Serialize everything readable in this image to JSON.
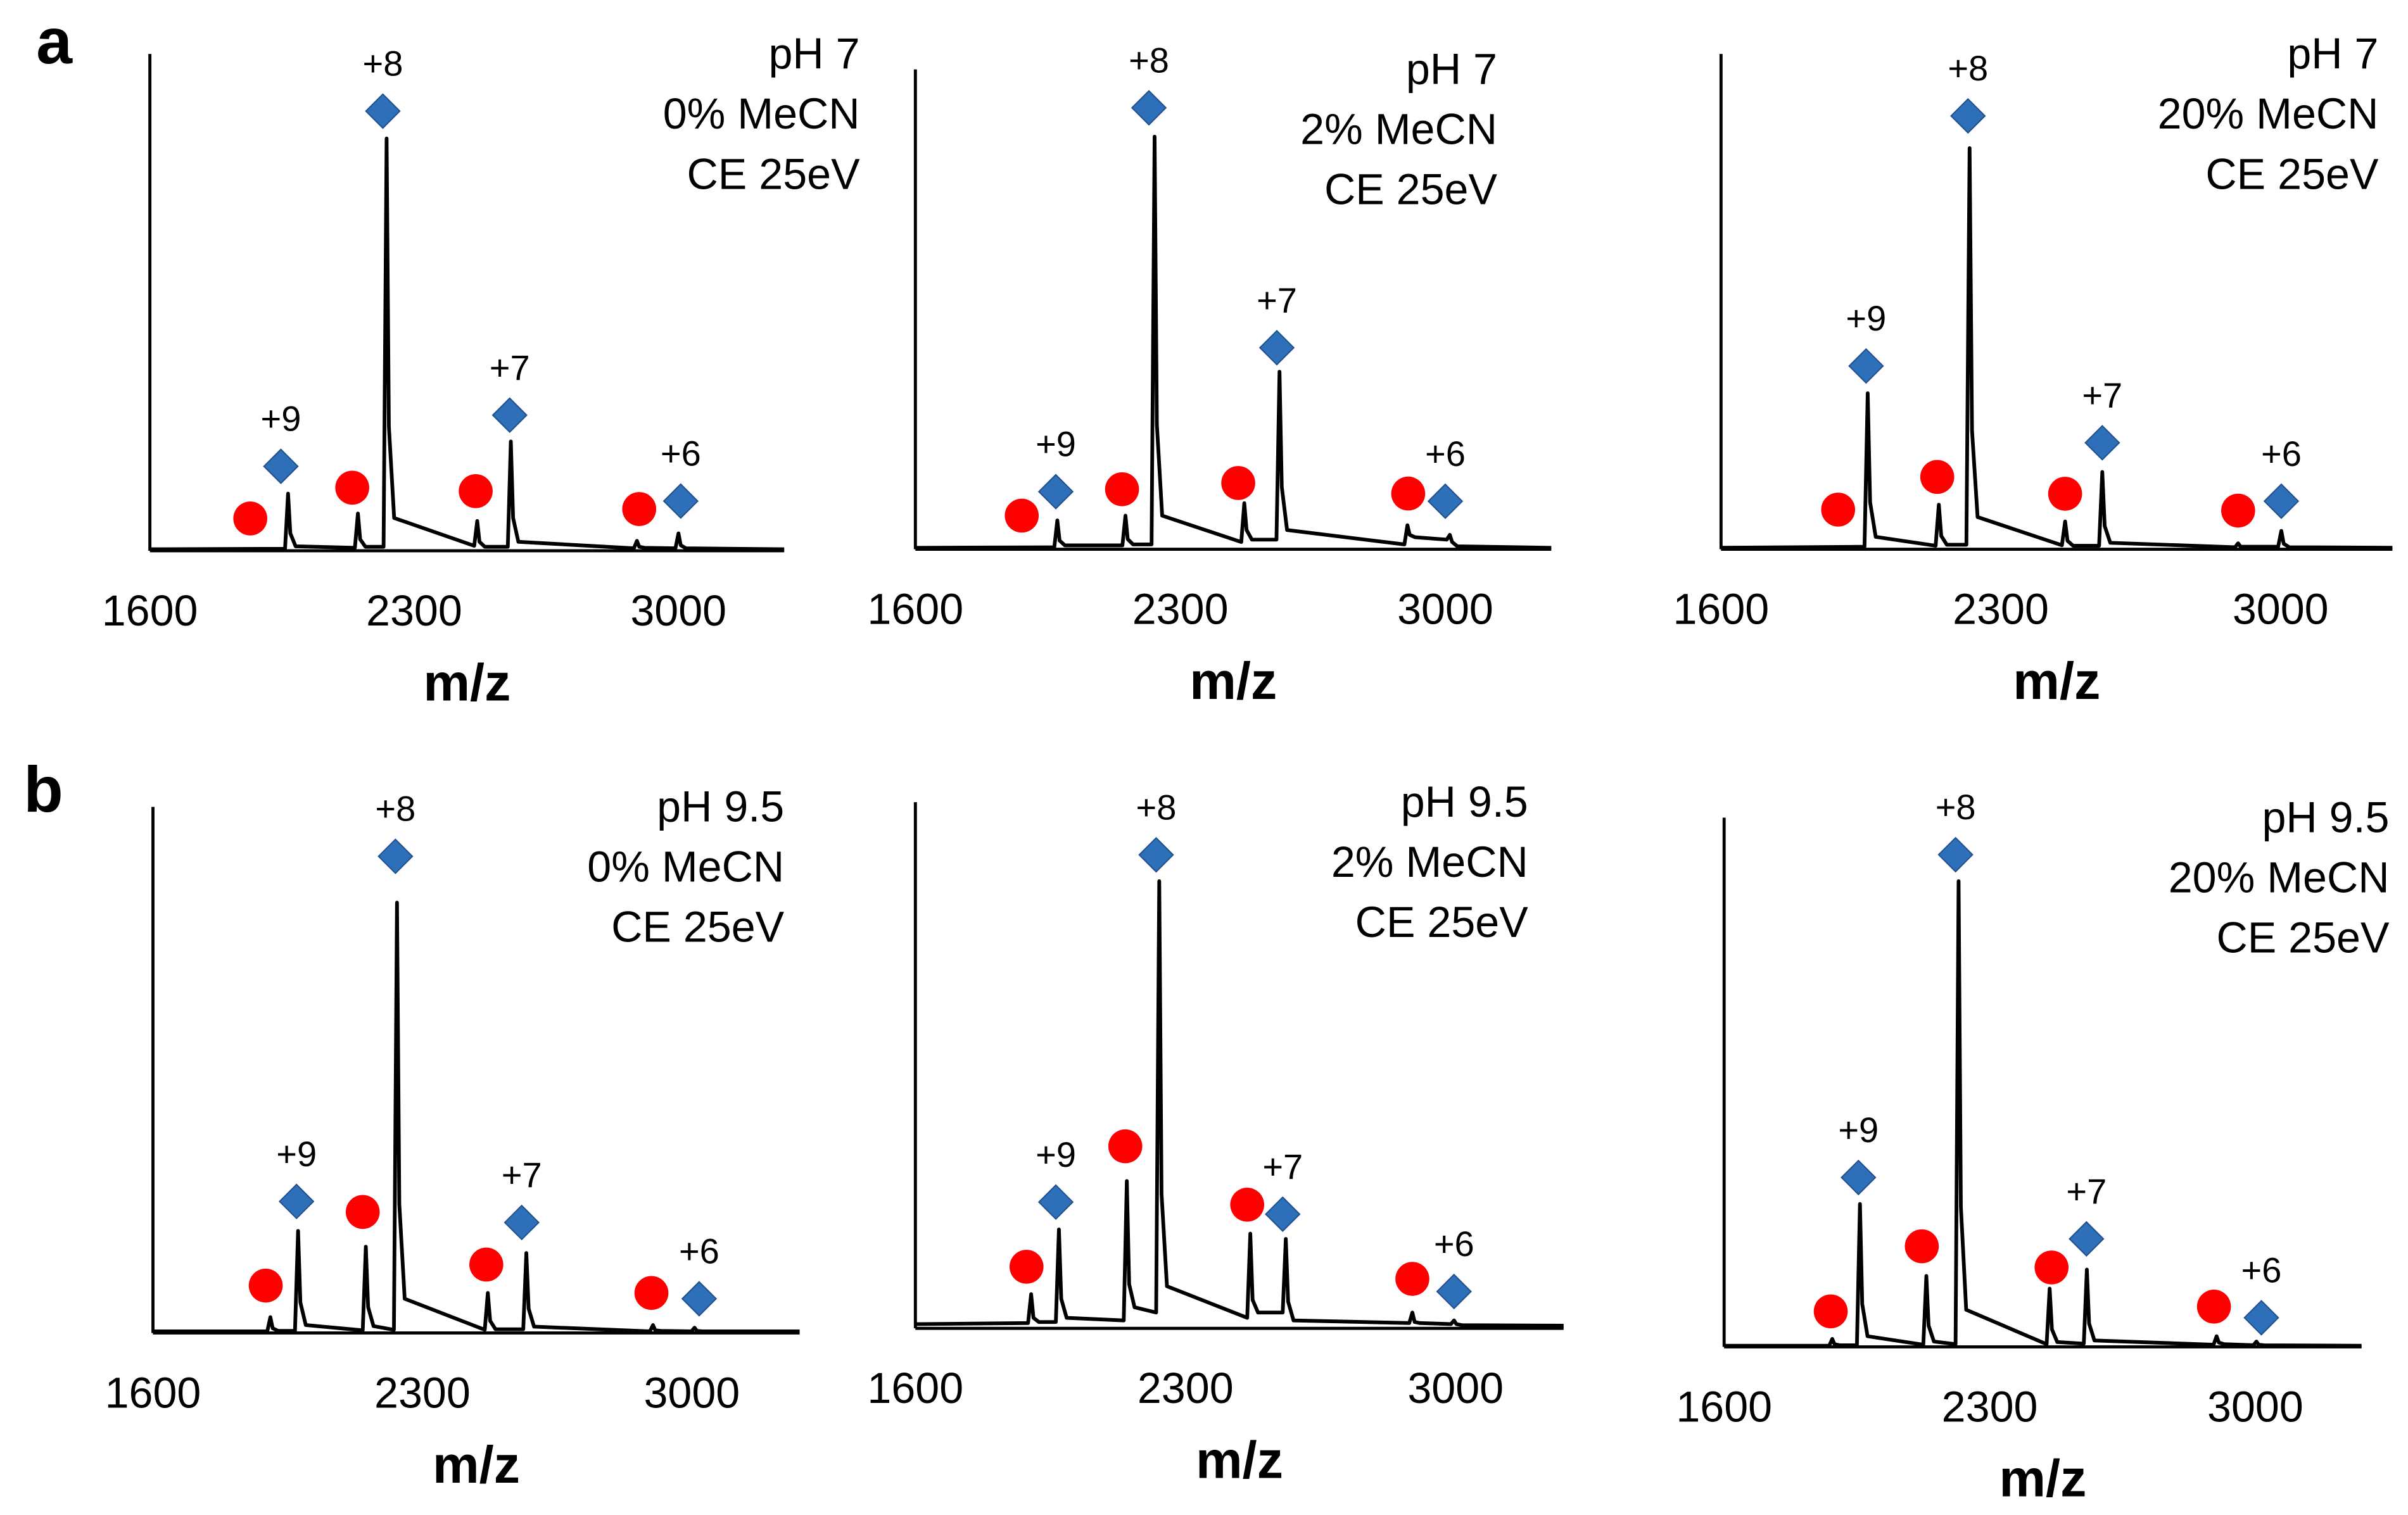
{
  "chart_data": [
    {
      "type": "line",
      "panel_label": "a",
      "annotation": [
        "pH 7",
        "0% MeCN",
        "CE 25eV"
      ],
      "xlabel": "m/z",
      "xlim": [
        1600,
        3280
      ],
      "xticks": [
        1600,
        2300,
        3000
      ],
      "ylim": [
        0,
        100
      ],
      "x": [
        1600,
        1958,
        1966,
        1972,
        1986,
        2143,
        2151,
        2157,
        2171,
        2219,
        2227,
        2233,
        2247,
        2459,
        2467,
        2473,
        2487,
        2548,
        2556,
        2562,
        2576,
        2882,
        2890,
        2896,
        2910,
        2992,
        3000,
        3006,
        3020,
        3280
      ],
      "series": [
        {
          "color": "#000000",
          "values": [
            0.3,
            0.4,
            11.5,
            3.5,
            0.9,
            0.6,
            7.5,
            2.3,
            0.8,
            0.8,
            83,
            25,
            6.6,
            1,
            6,
            1.8,
            0.8,
            0.8,
            22,
            6.6,
            1.8,
            0.5,
            2,
            0.8,
            0.6,
            0.5,
            3.5,
            1.1,
            0.5,
            0.3
          ]
        }
      ],
      "marker_colors": {
        "diamond": "#2e6fba",
        "circle": "#ff0000"
      },
      "markers": [
        {
          "shape": "circle",
          "x": 1866,
          "y": 6.5
        },
        {
          "shape": "diamond",
          "x": 1947,
          "y": 17,
          "label": "+9"
        },
        {
          "shape": "circle",
          "x": 2136,
          "y": 12.7
        },
        {
          "shape": "diamond",
          "x": 2217,
          "y": 88.5,
          "label": "+8"
        },
        {
          "shape": "circle",
          "x": 2463,
          "y": 12
        },
        {
          "shape": "diamond",
          "x": 2553,
          "y": 27.3,
          "label": "+7"
        },
        {
          "shape": "circle",
          "x": 2896,
          "y": 8.4
        },
        {
          "shape": "diamond",
          "x": 3006,
          "y": 10,
          "label": "+6"
        }
      ]
    },
    {
      "type": "line",
      "annotation": [
        "pH 7",
        "2% MeCN",
        "CE 25eV"
      ],
      "xlabel": "m/z",
      "xlim": [
        1600,
        3280
      ],
      "xticks": [
        1600,
        2300,
        3000
      ],
      "ylim": [
        0,
        100
      ],
      "x": [
        1600,
        1967,
        1975,
        1981,
        1995,
        2147,
        2155,
        2161,
        2175,
        2224,
        2232,
        2238,
        2252,
        2461,
        2469,
        2475,
        2489,
        2554,
        2562,
        2568,
        2582,
        2892,
        2900,
        2906,
        2920,
        3004,
        3012,
        3018,
        3032,
        3280
      ],
      "series": [
        {
          "color": "#000000",
          "values": [
            0.3,
            0.4,
            6,
            1.8,
            0.8,
            0.8,
            7,
            2.1,
            1,
            1,
            86,
            26,
            7,
            1.5,
            9.6,
            4,
            2,
            2,
            37,
            13,
            4,
            1,
            5,
            3,
            2.5,
            2,
            3,
            1.5,
            0.6,
            0.3
          ]
        }
      ],
      "marker_colors": {
        "diamond": "#2e6fba",
        "circle": "#ff0000"
      },
      "markers": [
        {
          "shape": "circle",
          "x": 1881,
          "y": 7
        },
        {
          "shape": "diamond",
          "x": 1971,
          "y": 12,
          "label": "+9"
        },
        {
          "shape": "circle",
          "x": 2146,
          "y": 12.5
        },
        {
          "shape": "diamond",
          "x": 2217,
          "y": 92,
          "label": "+8"
        },
        {
          "shape": "circle",
          "x": 2453,
          "y": 13.8
        },
        {
          "shape": "diamond",
          "x": 2555,
          "y": 42,
          "label": "+7"
        },
        {
          "shape": "circle",
          "x": 2902,
          "y": 11.6
        },
        {
          "shape": "diamond",
          "x": 3000,
          "y": 10,
          "label": "+6"
        }
      ]
    },
    {
      "type": "line",
      "annotation": [
        "pH 7",
        "20% MeCN",
        "CE 25eV"
      ],
      "xlabel": "m/z",
      "xlim": [
        1600,
        3280
      ],
      "xticks": [
        1600,
        2300,
        3000
      ],
      "ylim": [
        0,
        100
      ],
      "x": [
        1600,
        1959,
        1967,
        1973,
        1987,
        2137,
        2145,
        2151,
        2165,
        2214,
        2222,
        2228,
        2242,
        2453,
        2461,
        2467,
        2481,
        2546,
        2554,
        2560,
        2574,
        2886,
        2894,
        2900,
        2914,
        2994,
        3002,
        3008,
        3022,
        3280
      ],
      "series": [
        {
          "color": "#000000",
          "values": [
            0.3,
            0.5,
            31.5,
            9.5,
            2.5,
            0.7,
            9,
            2.7,
            0.9,
            0.9,
            81,
            24,
            6.5,
            0.8,
            5.6,
            1.7,
            0.7,
            0.7,
            15.6,
            4.7,
            1.3,
            0.4,
            1.2,
            0.5,
            0.5,
            0.5,
            3.7,
            1.1,
            0.4,
            0.3
          ]
        }
      ],
      "marker_colors": {
        "diamond": "#2e6fba",
        "circle": "#ff0000"
      },
      "markers": [
        {
          "shape": "circle",
          "x": 1893,
          "y": 8
        },
        {
          "shape": "diamond",
          "x": 1963,
          "y": 37,
          "label": "+9"
        },
        {
          "shape": "circle",
          "x": 2141,
          "y": 14.6
        },
        {
          "shape": "diamond",
          "x": 2218,
          "y": 87.5,
          "label": "+8"
        },
        {
          "shape": "circle",
          "x": 2461,
          "y": 11.2
        },
        {
          "shape": "diamond",
          "x": 2554,
          "y": 21.5,
          "label": "+7"
        },
        {
          "shape": "circle",
          "x": 2894,
          "y": 7.8
        },
        {
          "shape": "diamond",
          "x": 3002,
          "y": 9.7,
          "label": "+6"
        }
      ]
    },
    {
      "type": "line",
      "panel_label": "b",
      "annotation": [
        "pH 9.5",
        "0% MeCN",
        "CE 25eV"
      ],
      "xlabel": "m/z",
      "xlim": [
        1600,
        3280
      ],
      "xticks": [
        1600,
        2300,
        3000
      ],
      "ylim": [
        0,
        100
      ],
      "x": [
        1600,
        1897,
        1905,
        1911,
        1925,
        1969,
        1977,
        1983,
        1997,
        2145,
        2153,
        2159,
        2173,
        2226,
        2234,
        2240,
        2254,
        2462,
        2470,
        2476,
        2490,
        2562,
        2570,
        2576,
        2590,
        2891,
        2899,
        2905,
        2919,
        2999,
        3007,
        3013,
        3027,
        3280
      ],
      "series": [
        {
          "color": "#000000",
          "values": [
            0.3,
            0.3,
            3,
            0.9,
            0.4,
            0.4,
            19.4,
            5.8,
            1.5,
            0.5,
            16.4,
            4.9,
            1.3,
            0.6,
            81.8,
            24.5,
            6.5,
            0.6,
            7.6,
            2.3,
            0.7,
            0.7,
            15.2,
            4.6,
            1.2,
            0.3,
            1.5,
            0.5,
            0.4,
            0.3,
            1,
            0.4,
            0.3,
            0.3
          ]
        }
      ],
      "marker_colors": {
        "diamond": "#2e6fba",
        "circle": "#ff0000"
      },
      "markers": [
        {
          "shape": "circle",
          "x": 1893,
          "y": 9
        },
        {
          "shape": "diamond",
          "x": 1973,
          "y": 25,
          "label": "+9"
        },
        {
          "shape": "circle",
          "x": 2145,
          "y": 23
        },
        {
          "shape": "diamond",
          "x": 2230,
          "y": 90.6,
          "label": "+8"
        },
        {
          "shape": "circle",
          "x": 2466,
          "y": 13
        },
        {
          "shape": "diamond",
          "x": 2558,
          "y": 21,
          "label": "+7"
        },
        {
          "shape": "circle",
          "x": 2895,
          "y": 7.6
        },
        {
          "shape": "diamond",
          "x": 3019,
          "y": 6.5,
          "label": "+6"
        }
      ]
    },
    {
      "type": "line",
      "annotation": [
        "pH 9.5",
        "2% MeCN",
        "CE 25eV"
      ],
      "xlabel": "m/z",
      "xlim": [
        1600,
        3280
      ],
      "xticks": [
        1600,
        2300,
        3000
      ],
      "ylim": [
        0,
        100
      ],
      "x": [
        1600,
        1892,
        1900,
        1906,
        1920,
        1964,
        1972,
        1978,
        1992,
        2140,
        2148,
        2154,
        2168,
        2224,
        2232,
        2238,
        2252,
        2460,
        2468,
        2474,
        2488,
        2552,
        2560,
        2566,
        2580,
        2880,
        2888,
        2894,
        2908,
        2988,
        2996,
        3002,
        3016,
        3280
      ],
      "series": [
        {
          "color": "#000000",
          "values": [
            0.8,
            1,
            6.5,
            2,
            1.2,
            1.2,
            18.8,
            5.6,
            2,
            1.5,
            28,
            8.4,
            4,
            3,
            85,
            25.5,
            8,
            2,
            18,
            5.4,
            3,
            3,
            17,
            5.1,
            1.5,
            1,
            3,
            1.2,
            1,
            0.8,
            1.5,
            0.8,
            0.6,
            0.5
          ]
        }
      ],
      "marker_colors": {
        "diamond": "#2e6fba",
        "circle": "#ff0000"
      },
      "markers": [
        {
          "shape": "circle",
          "x": 1888,
          "y": 11.7
        },
        {
          "shape": "diamond",
          "x": 1964,
          "y": 24,
          "label": "+9"
        },
        {
          "shape": "circle",
          "x": 2144,
          "y": 34.6
        },
        {
          "shape": "diamond",
          "x": 2224,
          "y": 90,
          "label": "+8"
        },
        {
          "shape": "circle",
          "x": 2460,
          "y": 23.5
        },
        {
          "shape": "diamond",
          "x": 2552,
          "y": 21.7,
          "label": "+7"
        },
        {
          "shape": "circle",
          "x": 2888,
          "y": 9.4
        },
        {
          "shape": "diamond",
          "x": 2996,
          "y": 7,
          "label": "+6"
        }
      ]
    },
    {
      "type": "line",
      "annotation": [
        "pH 9.5",
        "20% MeCN",
        "CE 25eV"
      ],
      "xlabel": "m/z",
      "xlim": [
        1600,
        3280
      ],
      "xticks": [
        1600,
        2300,
        3000
      ],
      "ylim": [
        0,
        100
      ],
      "x": [
        1600,
        1877,
        1885,
        1891,
        1905,
        1950,
        1958,
        1964,
        1978,
        2125,
        2133,
        2139,
        2153,
        2210,
        2218,
        2224,
        2238,
        2450,
        2458,
        2464,
        2478,
        2548,
        2556,
        2562,
        2576,
        2890,
        2898,
        2904,
        2918,
        2995,
        3003,
        3009,
        3023,
        3280
      ],
      "series": [
        {
          "color": "#000000",
          "values": [
            0.2,
            0.2,
            1.5,
            0.5,
            0.3,
            0.3,
            27,
            8.1,
            2,
            0.4,
            13.4,
            4,
            1,
            0.5,
            88,
            26.4,
            7,
            0.5,
            11,
            3.3,
            0.9,
            0.6,
            14.6,
            4.4,
            1.2,
            0.4,
            2,
            0.8,
            0.5,
            0.3,
            1,
            0.4,
            0.3,
            0.2
          ]
        }
      ],
      "marker_colors": {
        "diamond": "#2e6fba",
        "circle": "#ff0000"
      },
      "markers": [
        {
          "shape": "circle",
          "x": 1881,
          "y": 6.7
        },
        {
          "shape": "diamond",
          "x": 1954,
          "y": 32,
          "label": "+9"
        },
        {
          "shape": "circle",
          "x": 2121,
          "y": 19
        },
        {
          "shape": "diamond",
          "x": 2210,
          "y": 93,
          "label": "+8"
        },
        {
          "shape": "circle",
          "x": 2463,
          "y": 15
        },
        {
          "shape": "diamond",
          "x": 2555,
          "y": 20.4,
          "label": "+7"
        },
        {
          "shape": "circle",
          "x": 2891,
          "y": 7.6
        },
        {
          "shape": "diamond",
          "x": 3016,
          "y": 5.5,
          "label": "+6"
        }
      ]
    }
  ]
}
